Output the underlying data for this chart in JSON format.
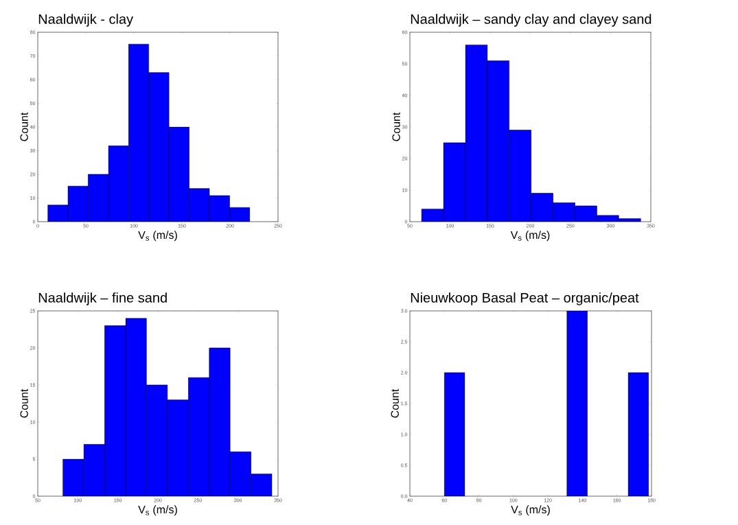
{
  "chart_data": [
    {
      "type": "histogram",
      "title": "Naaldwijk - clay",
      "xlabel": "V$_{s}$ (m/s)",
      "ylabel": "Count",
      "color": "#0000ff",
      "bins": [
        10.4,
        31.4,
        52.4,
        73.5,
        94.5,
        115.5,
        136.5,
        157.5,
        178.6,
        199.6,
        220.6
      ],
      "values": [
        7,
        15,
        20,
        32,
        75,
        63,
        40,
        14,
        11,
        6
      ],
      "xlim": [
        0,
        250
      ],
      "xticks": [
        0,
        50,
        100,
        150,
        200,
        250
      ],
      "ylim": [
        0,
        80
      ],
      "yticks": [
        0,
        10,
        20,
        30,
        40,
        50,
        60,
        70,
        80
      ]
    },
    {
      "type": "histogram",
      "title": "Naaldwijk – sandy clay and clayey sand",
      "xlabel": "V$_{s}$ (m/s)",
      "ylabel": "Count",
      "color": "#0000ff",
      "bins": [
        64.6,
        91.9,
        119.2,
        146.5,
        173.7,
        201.0,
        228.3,
        255.6,
        282.8,
        310.1,
        337.4
      ],
      "values": [
        4,
        25,
        56,
        51,
        29,
        9,
        6,
        5,
        2,
        1
      ],
      "xlim": [
        50,
        350
      ],
      "xticks": [
        50,
        100,
        150,
        200,
        250,
        300,
        350
      ],
      "ylim": [
        0,
        60
      ],
      "yticks": [
        0,
        10,
        20,
        30,
        40,
        50,
        60
      ]
    },
    {
      "type": "histogram",
      "title": "Naaldwijk – fine sand",
      "xlabel": "V$_{s}$ (m/s)",
      "ylabel": "Count",
      "color": "#0000ff",
      "bins": [
        81.4,
        107.5,
        133.6,
        159.7,
        185.8,
        211.9,
        238.0,
        264.1,
        290.2,
        316.3,
        342.4
      ],
      "values": [
        5,
        7,
        23,
        24,
        15,
        13,
        16,
        20,
        6,
        3
      ],
      "xlim": [
        50,
        350
      ],
      "xticks": [
        50,
        100,
        150,
        200,
        250,
        300,
        350
      ],
      "ylim": [
        0,
        25
      ],
      "yticks": [
        0,
        5,
        10,
        15,
        20,
        25
      ]
    },
    {
      "type": "histogram",
      "title": "Nieuwkoop Basal Peat – organic/peat",
      "xlabel": "V$_{s}$ (m/s)",
      "ylabel": "Count",
      "color": "#0000ff",
      "bins": [
        60.0,
        71.8,
        83.7,
        95.5,
        107.3,
        119.2,
        131.0,
        142.8,
        154.6,
        166.5,
        178.3
      ],
      "values": [
        2,
        0,
        0,
        0,
        0,
        0,
        3,
        0,
        0,
        2
      ],
      "xlim": [
        40,
        180
      ],
      "xticks": [
        40,
        60,
        80,
        100,
        120,
        140,
        160,
        180
      ],
      "ylim": [
        0,
        3
      ],
      "yticks": [
        {
          "value": 0,
          "label": "0.0"
        },
        {
          "value": 0.5,
          "label": "0.5"
        },
        {
          "value": 1,
          "label": "1.0"
        },
        {
          "value": 1.5,
          "label": "1.5"
        },
        {
          "value": 2,
          "label": "2.0"
        },
        {
          "value": 2.5,
          "label": "2.5"
        },
        {
          "value": 3,
          "label": "3.0"
        }
      ]
    }
  ]
}
